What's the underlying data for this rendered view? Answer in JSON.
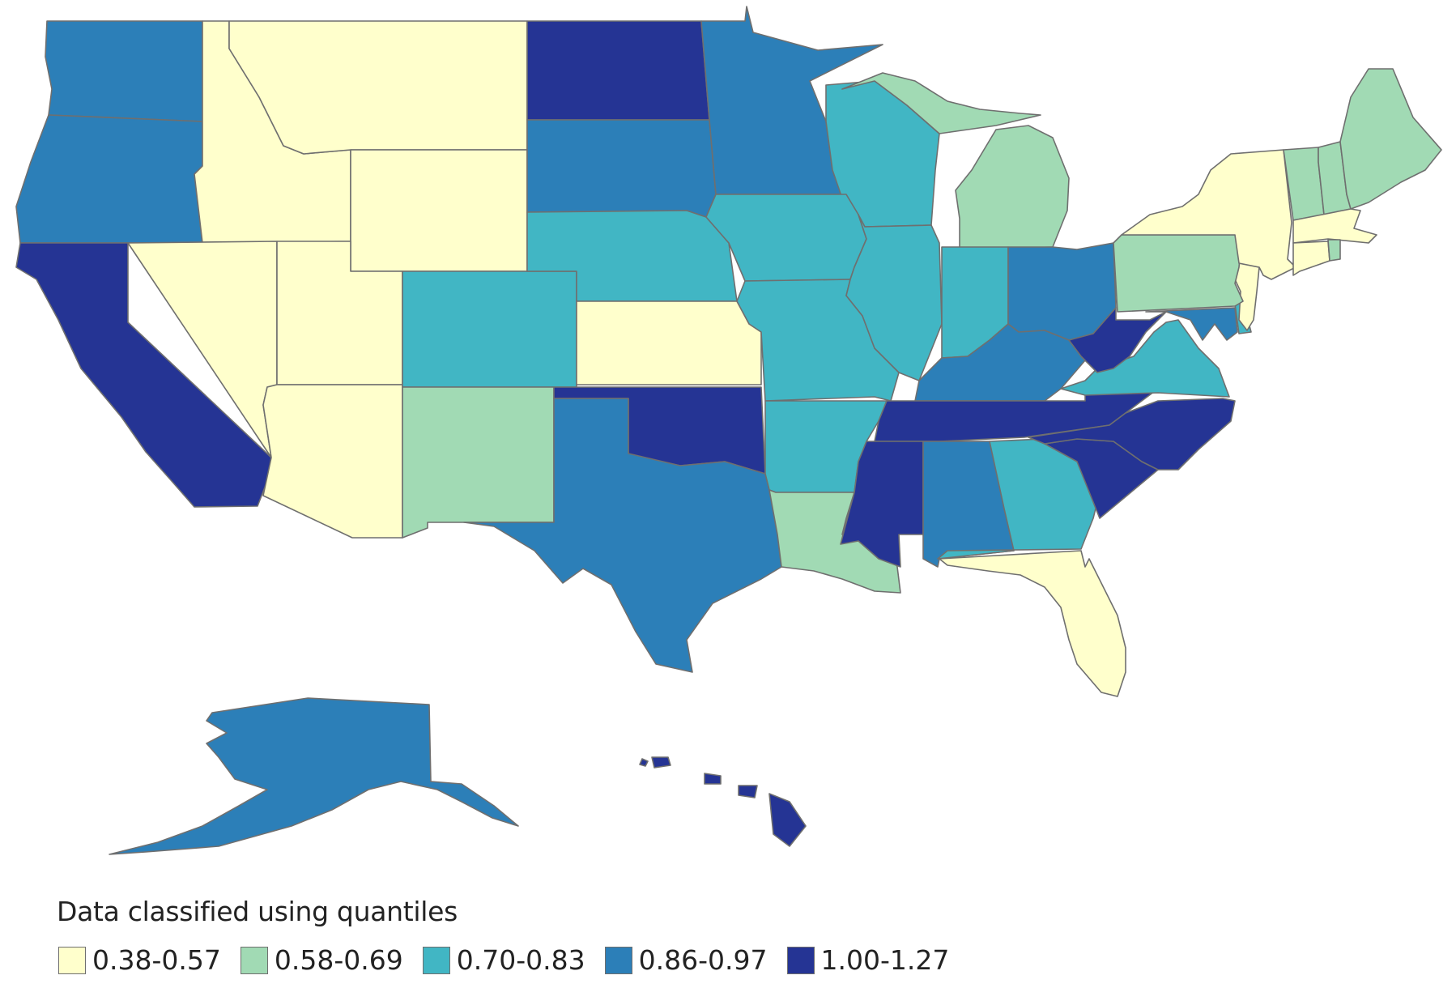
{
  "map": {
    "legend_title": "Data classified using quantiles",
    "classes": [
      {
        "label": "0.38-0.57",
        "color": "#ffffcc"
      },
      {
        "label": "0.58-0.69",
        "color": "#a1dab4"
      },
      {
        "label": "0.70-0.83",
        "color": "#41b6c4"
      },
      {
        "label": "0.86-0.97",
        "color": "#2c7fb8"
      },
      {
        "label": "1.00-1.27",
        "color": "#253494"
      }
    ],
    "states": [
      {
        "id": "WA",
        "class": 3
      },
      {
        "id": "OR",
        "class": 3
      },
      {
        "id": "CA",
        "class": 4
      },
      {
        "id": "ID",
        "class": 0
      },
      {
        "id": "MT",
        "class": 0
      },
      {
        "id": "WY",
        "class": 0
      },
      {
        "id": "NV",
        "class": 0
      },
      {
        "id": "UT",
        "class": 0
      },
      {
        "id": "AZ",
        "class": 0
      },
      {
        "id": "CO",
        "class": 2
      },
      {
        "id": "NM",
        "class": 1
      },
      {
        "id": "ND",
        "class": 4
      },
      {
        "id": "SD",
        "class": 3
      },
      {
        "id": "NE",
        "class": 2
      },
      {
        "id": "KS",
        "class": 0
      },
      {
        "id": "OK",
        "class": 4
      },
      {
        "id": "TX",
        "class": 3
      },
      {
        "id": "MN",
        "class": 3
      },
      {
        "id": "IA",
        "class": 2
      },
      {
        "id": "MO",
        "class": 2
      },
      {
        "id": "AR",
        "class": 2
      },
      {
        "id": "LA",
        "class": 1
      },
      {
        "id": "WI",
        "class": 2
      },
      {
        "id": "IL",
        "class": 2
      },
      {
        "id": "MI",
        "class": 1
      },
      {
        "id": "IN",
        "class": 2
      },
      {
        "id": "OH",
        "class": 3
      },
      {
        "id": "KY",
        "class": 3
      },
      {
        "id": "TN",
        "class": 4
      },
      {
        "id": "MS",
        "class": 4
      },
      {
        "id": "AL",
        "class": 3
      },
      {
        "id": "GA",
        "class": 2
      },
      {
        "id": "FL",
        "class": 0
      },
      {
        "id": "SC",
        "class": 4
      },
      {
        "id": "NC",
        "class": 4
      },
      {
        "id": "VA",
        "class": 2
      },
      {
        "id": "WV",
        "class": 4
      },
      {
        "id": "MD",
        "class": 3
      },
      {
        "id": "DE",
        "class": 2
      },
      {
        "id": "NJ",
        "class": 0
      },
      {
        "id": "PA",
        "class": 1
      },
      {
        "id": "NY",
        "class": 0
      },
      {
        "id": "VT",
        "class": 1
      },
      {
        "id": "NH",
        "class": 1
      },
      {
        "id": "ME",
        "class": 1
      },
      {
        "id": "MA",
        "class": 0
      },
      {
        "id": "CT",
        "class": 0
      },
      {
        "id": "RI",
        "class": 1
      },
      {
        "id": "AK",
        "class": 3
      },
      {
        "id": "HI",
        "class": 4
      }
    ]
  }
}
